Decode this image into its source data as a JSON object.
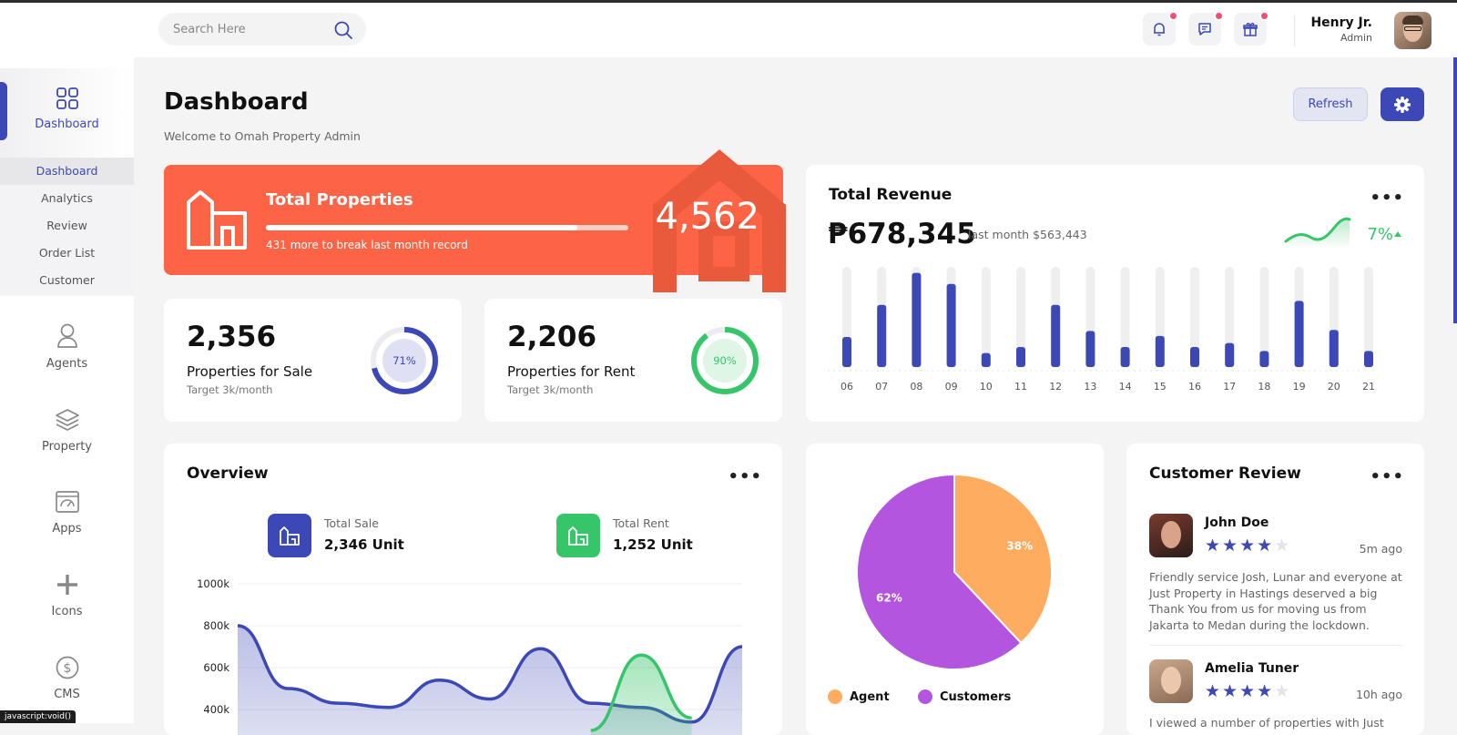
{
  "header": {
    "search_placeholder": "Search Here",
    "user": {
      "name": "Henry Jr.",
      "role": "Admin"
    }
  },
  "sidebar": {
    "main_label": "Dashboard",
    "submenu": [
      "Dashboard",
      "Analytics",
      "Review",
      "Order List",
      "Customer"
    ],
    "items": [
      "Agents",
      "Property",
      "Apps",
      "Icons",
      "CMS"
    ]
  },
  "page": {
    "title": "Dashboard",
    "subtitle": "Welcome to Omah Property Admin",
    "refresh_label": "Refresh"
  },
  "total_properties": {
    "label": "Total Properties",
    "value": "4,562",
    "note": "431 more to break last month record",
    "progress": 0.86
  },
  "sale": {
    "value": "2,356",
    "label": "Properties for Sale",
    "target": "Target 3k/month",
    "percent_label": "71%",
    "percent": 71
  },
  "rent": {
    "value": "2,206",
    "label": "Properties for Rent",
    "target": "Target 3k/month",
    "percent_label": "90%",
    "percent": 90
  },
  "revenue": {
    "title": "Total Revenue",
    "value": "₱678,345",
    "last_month": "last month $563,443",
    "change": "7%",
    "menu": "•••"
  },
  "overview": {
    "title": "Overview",
    "menu": "•••",
    "total_sale_label": "Total Sale",
    "total_sale_value": "2,346 Unit",
    "total_rent_label": "Total Rent",
    "total_rent_value": "1,252 Unit"
  },
  "review": {
    "title": "Customer Review",
    "menu": "•••",
    "items": [
      {
        "name": "John Doe",
        "time": "5m ago",
        "stars": 4,
        "text": "Friendly service Josh, Lunar and everyone at Just Property in Hastings deserved a big Thank You from us for moving us from Jakarta to Medan during the lockdown."
      },
      {
        "name": "Amelia Tuner",
        "time": "10h ago",
        "stars": 4,
        "text": "I viewed a number of properties with Just"
      }
    ]
  },
  "status_bar": "javascript:void()",
  "colors": {
    "primary": "#3c48b5",
    "orange": "#fd6446",
    "green": "#37c56a",
    "agent": "#fdac60",
    "customers": "#b455e0"
  },
  "chart_data": [
    {
      "type": "bar",
      "categories": [
        "06",
        "07",
        "08",
        "09",
        "10",
        "11",
        "12",
        "13",
        "14",
        "15",
        "16",
        "17",
        "18",
        "19",
        "20",
        "21"
      ],
      "values": [
        30,
        62,
        94,
        83,
        14,
        20,
        62,
        36,
        20,
        31,
        20,
        24,
        16,
        66,
        37,
        16
      ],
      "ylim": [
        0,
        100
      ]
    },
    {
      "type": "area",
      "ylabels": [
        "1000k",
        "800k",
        "600k",
        "400k"
      ],
      "series": [
        {
          "values": [
            800,
            500,
            430,
            410,
            540,
            450,
            690,
            430,
            410,
            340,
            700
          ]
        },
        {
          "values": [
            null,
            null,
            null,
            null,
            null,
            null,
            null,
            300,
            660,
            360,
            null
          ]
        }
      ]
    },
    {
      "type": "pie",
      "slices": [
        {
          "label": "Agent",
          "value": 38,
          "text": "38%",
          "color": "#fdac60"
        },
        {
          "label": "Customers",
          "value": 62,
          "text": "62%",
          "color": "#b455e0"
        }
      ]
    }
  ]
}
